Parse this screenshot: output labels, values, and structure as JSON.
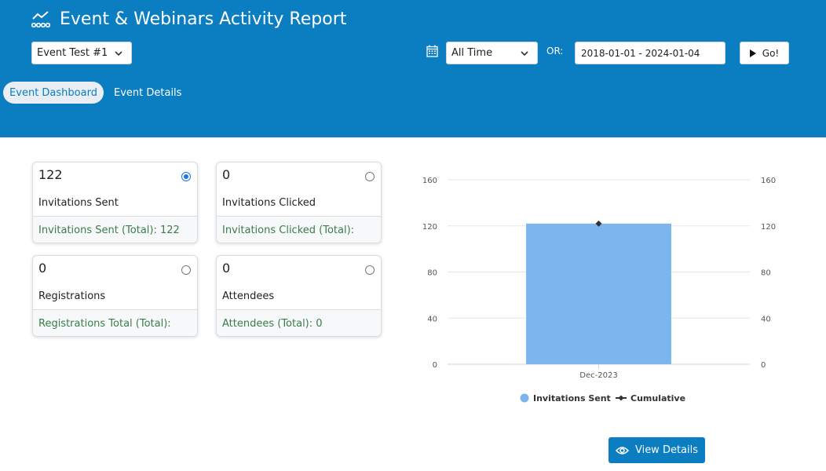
{
  "header": {
    "title": "Event & Webinars Activity Report",
    "event_select": "Event Test #1",
    "range_select": "All Time",
    "or_label": "OR:",
    "date_range": "2018-01-01 - 2024-01-04",
    "go_label": "Go!",
    "bg_color": "#0b7dc1"
  },
  "tabs": [
    {
      "label": "Event Dashboard",
      "active": true
    },
    {
      "label": "Event Details",
      "active": false
    }
  ],
  "cards": [
    {
      "count": "122",
      "label": "Invitations Sent",
      "footer": "Invitations Sent (Total): 122",
      "selected": true
    },
    {
      "count": "0",
      "label": "Invitations Clicked",
      "footer": "Invitations Clicked (Total):",
      "selected": false
    },
    {
      "count": "0",
      "label": "Registrations",
      "footer": "Registrations Total (Total):",
      "selected": false
    },
    {
      "count": "0",
      "label": "Attendees",
      "footer": "Attendees (Total): 0",
      "selected": false
    }
  ],
  "chart_data": {
    "type": "bar",
    "categories": [
      "Dec-2023"
    ],
    "series": [
      {
        "name": "Invitations Sent",
        "type": "bar",
        "values": [
          122
        ],
        "color": "#7cb5ec"
      },
      {
        "name": "Cumulative",
        "type": "line",
        "values": [
          122
        ],
        "color": "#333333"
      }
    ],
    "ylim": [
      0,
      160
    ],
    "yticks": [
      0,
      40,
      80,
      120,
      160
    ],
    "y2ticks": [
      0,
      40,
      80,
      120,
      160
    ],
    "grid": true,
    "legend": "bottom"
  },
  "view_button": {
    "label": "View Details",
    "icon": "eye-icon"
  }
}
